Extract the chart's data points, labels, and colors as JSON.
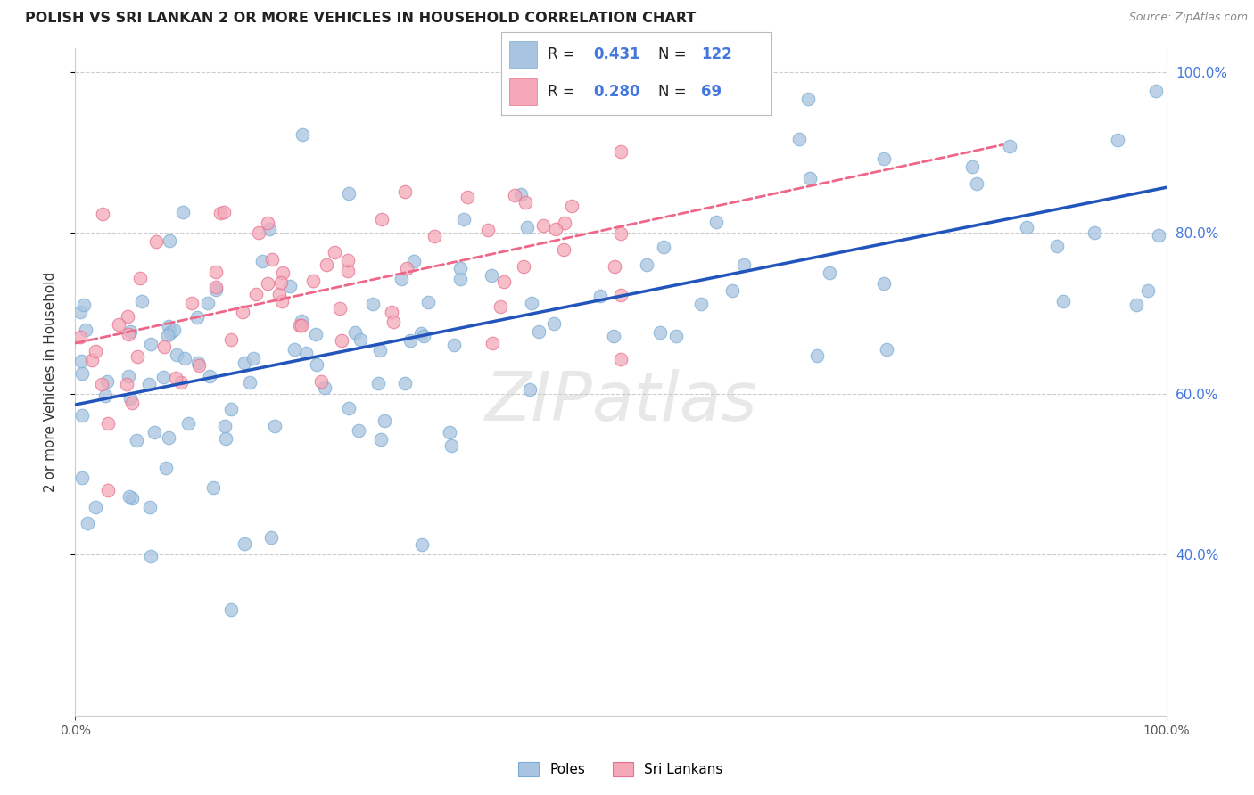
{
  "title": "POLISH VS SRI LANKAN 2 OR MORE VEHICLES IN HOUSEHOLD CORRELATION CHART",
  "source": "Source: ZipAtlas.com",
  "ylabel": "2 or more Vehicles in Household",
  "legend_labels": [
    "Poles",
    "Sri Lankans"
  ],
  "r_poles": 0.431,
  "n_poles": 122,
  "r_srilankans": 0.28,
  "n_srilankans": 69,
  "poles_color": "#A8C4E0",
  "poles_edge_color": "#7AADD4",
  "srilankans_color": "#F4A8B8",
  "srilankans_edge_color": "#E87090",
  "trendline_poles_color": "#2255BB",
  "trendline_srilankans_color": "#EE6688",
  "watermark": "ZIPatlas",
  "right_axis_color": "#4477DD",
  "ylim_low": 0.2,
  "ylim_high": 1.03,
  "yticks": [
    0.4,
    0.6,
    0.8,
    1.0
  ],
  "ytick_labels": [
    "40.0%",
    "60.0%",
    "80.0%",
    "100.0%"
  ],
  "xlim_low": 0.0,
  "xlim_high": 1.0,
  "xtick_labels": [
    "0.0%",
    "100.0%"
  ],
  "xticks": [
    0.0,
    1.0
  ]
}
